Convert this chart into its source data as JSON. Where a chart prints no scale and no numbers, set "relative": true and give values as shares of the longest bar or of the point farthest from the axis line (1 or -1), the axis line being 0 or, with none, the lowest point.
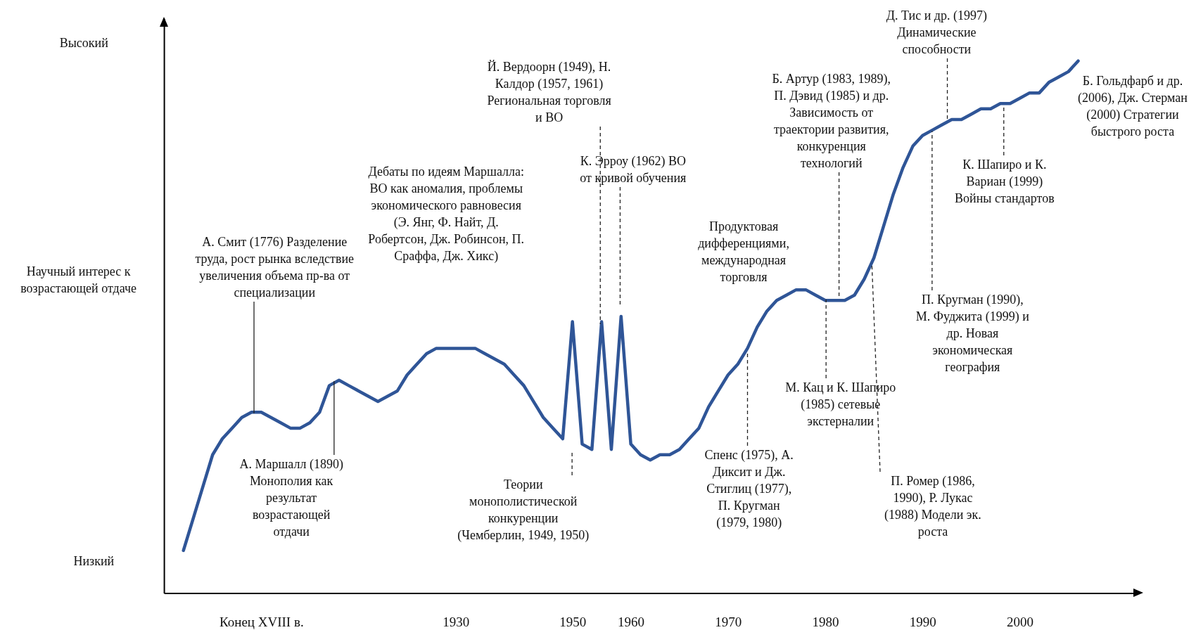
{
  "chart_data": {
    "type": "line",
    "relative": true,
    "ylabel": "Научный интерес к возрастающей отдаче",
    "tick_labels": "x",
    "grid": false,
    "categories": [
      null,
      null,
      null,
      null,
      null,
      null,
      null,
      null,
      null,
      null,
      "Конец XVIII в.",
      null,
      null,
      null,
      null,
      null,
      null,
      null,
      null,
      null,
      null,
      null,
      null,
      null,
      null,
      null,
      null,
      null,
      null,
      null,
      "1930",
      null,
      null,
      null,
      null,
      null,
      null,
      null,
      null,
      null,
      null,
      null,
      "1950",
      null,
      null,
      null,
      null,
      null,
      "1960",
      null,
      null,
      null,
      null,
      null,
      null,
      null,
      null,
      null,
      "1970",
      null,
      null,
      null,
      null,
      null,
      null,
      null,
      null,
      null,
      "1980",
      null,
      null,
      null,
      null,
      null,
      null,
      null,
      null,
      null,
      "1990",
      null,
      null,
      null,
      null,
      null,
      null,
      null,
      null,
      null,
      "2000",
      null,
      null,
      null,
      null,
      null,
      null,
      null,
      null,
      null,
      null,
      null,
      null
    ],
    "series": [
      {
        "color": "#2f5597",
        "values": [
          null,
          null,
          0.08,
          0.14,
          0.2,
          0.26,
          0.29,
          0.31,
          0.33,
          0.34,
          0.34,
          0.33,
          0.32,
          0.31,
          0.31,
          0.32,
          0.34,
          0.39,
          0.4,
          0.39,
          0.38,
          0.37,
          0.36,
          0.37,
          0.38,
          0.41,
          0.43,
          0.45,
          0.46,
          0.46,
          0.46,
          0.46,
          0.46,
          0.45,
          0.44,
          0.43,
          0.41,
          0.39,
          0.36,
          0.33,
          0.31,
          0.29,
          0.51,
          0.28,
          0.27,
          0.51,
          0.27,
          0.52,
          0.28,
          0.26,
          0.25,
          0.26,
          0.26,
          0.27,
          0.29,
          0.31,
          0.35,
          0.38,
          0.41,
          0.43,
          0.46,
          0.5,
          0.53,
          0.55,
          0.56,
          0.57,
          0.57,
          0.56,
          0.55,
          0.55,
          0.55,
          0.56,
          0.59,
          0.63,
          0.69,
          0.75,
          0.8,
          0.84,
          0.86,
          0.87,
          0.88,
          0.89,
          0.89,
          0.9,
          0.91,
          0.91,
          0.92,
          0.92,
          0.93,
          0.94,
          0.94,
          0.96,
          0.97,
          0.98,
          1,
          null,
          null,
          null,
          null,
          null,
          null
        ]
      }
    ],
    "annotations": [
      "Высокий",
      "Низкий",
      "А. Смит (1776) Разделение труда, рост рынка вследствие увеличения объема пр-ва от специализации",
      "А. Маршалл (1890) Монополия как результат возрастающей отдачи",
      "Дебаты по идеям Маршалла: ВО как аномалия, проблемы экономического равновесия (Э. Янг, Ф. Найт, Д. Робертсон, Дж. Робинсон, П. Сраффа, Дж. Хикс)",
      "Й. Вердоорн (1949), Н. Калдор (1957, 1961) Региональная торговля и ВО",
      "К. Эрроу (1962) ВО от кривой обучения",
      "Теории монополистической конкуренции (Чемберлин, 1949, 1950)",
      "Продуктовая дифференциями, международная торговля",
      "Б. Артур (1983, 1989), П. Дэвид (1985) и др. Зависимость от траектории развития, конкуренция технологий",
      "Спенс (1975), А. Диксит и Дж. Стиглиц (1977), П. Кругман (1979, 1980)",
      "М. Кац и К. Шапиро (1985) сетевые экстерналии",
      "П. Ромер (1986, 1990), Р. Лукас (1988) Модели эк. роста",
      "Д. Тис и др. (1997) Динамические способности",
      "П. Кругман (1990), М. Фуджита (1999) и др. Новая экономическая география",
      "К. Шапиро и К. Вариан (1999) Войны стандартов",
      "Б. Гольдфарб и др. (2006), Дж. Стерман (2000) Стратегии быстрого роста"
    ]
  }
}
